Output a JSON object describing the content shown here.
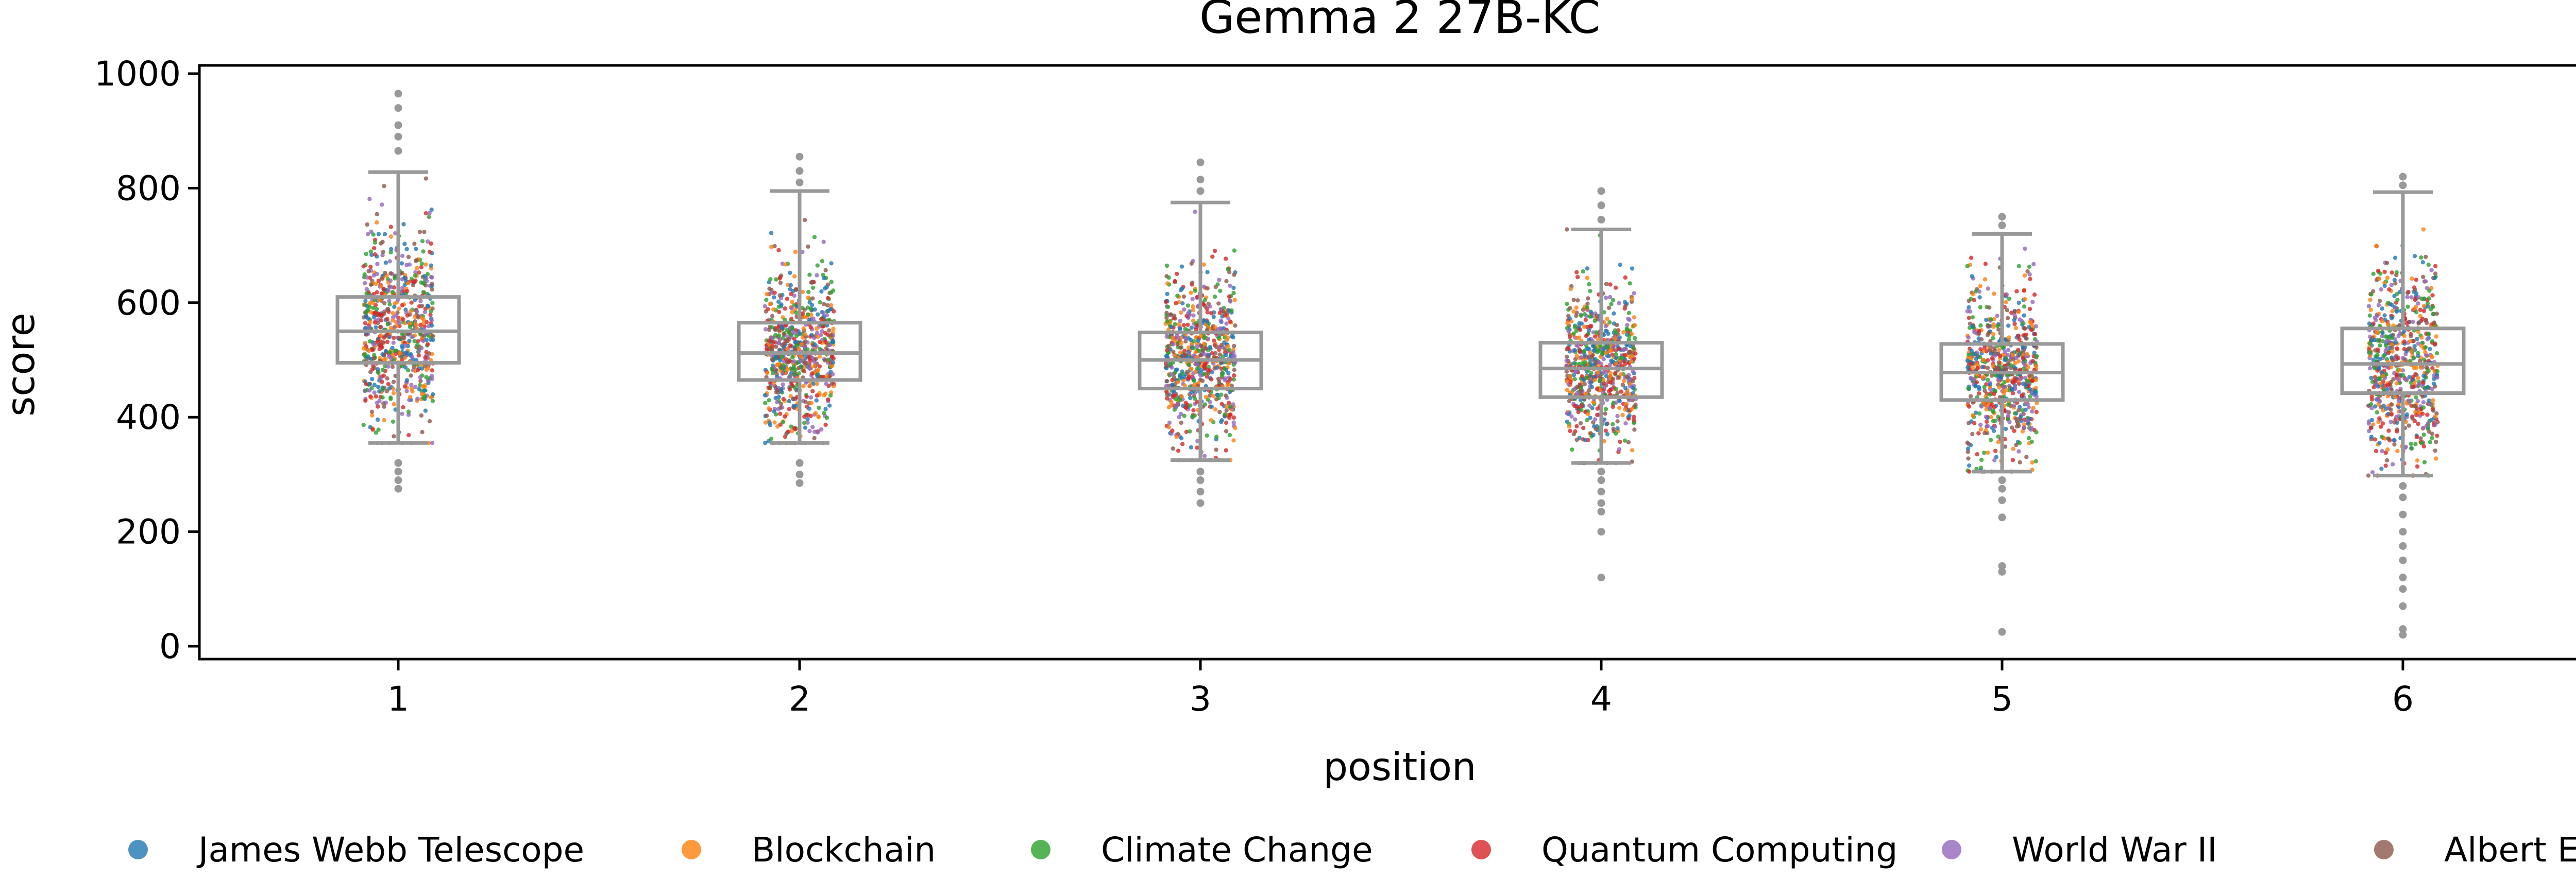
{
  "chart_data": {
    "type": "scatter",
    "title": "Gemma 2 27B-KC",
    "xlabel": "position",
    "ylabel": "score",
    "categories": [
      "1",
      "2",
      "3",
      "4",
      "5",
      "6"
    ],
    "ylim": [
      -25,
      1000
    ],
    "yticks": [
      "0",
      "200",
      "400",
      "600",
      "800",
      "1000"
    ],
    "grid": false,
    "legend_placement": "bottom",
    "series": [
      {
        "name": "James Webb Telescope",
        "color": "#1f77b4"
      },
      {
        "name": "Blockchain",
        "color": "#ff7f0e"
      },
      {
        "name": "Climate Change",
        "color": "#2ca02c"
      },
      {
        "name": "Quantum Computing",
        "color": "#d62728"
      },
      {
        "name": "World War II",
        "color": "#9467bd"
      },
      {
        "name": "Albert Einstein",
        "color": "#8c564b"
      }
    ],
    "box_color": "#999999",
    "boxes": [
      {
        "position": "1",
        "whisker_low": 355,
        "q1": 495,
        "median": 550,
        "q3": 610,
        "whisker_high": 828,
        "outliers": [
          275,
          290,
          305,
          320,
          865,
          890,
          910,
          940,
          965
        ]
      },
      {
        "position": "2",
        "whisker_low": 355,
        "q1": 465,
        "median": 512,
        "q3": 565,
        "whisker_high": 795,
        "outliers": [
          285,
          300,
          320,
          810,
          830,
          855
        ]
      },
      {
        "position": "3",
        "whisker_low": 325,
        "q1": 450,
        "median": 500,
        "q3": 548,
        "whisker_high": 775,
        "outliers": [
          250,
          270,
          290,
          305,
          795,
          815,
          845
        ]
      },
      {
        "position": "4",
        "whisker_low": 320,
        "q1": 435,
        "median": 485,
        "q3": 530,
        "whisker_high": 728,
        "outliers": [
          120,
          200,
          235,
          250,
          270,
          290,
          305,
          745,
          770,
          795
        ]
      },
      {
        "position": "5",
        "whisker_low": 305,
        "q1": 430,
        "median": 478,
        "q3": 528,
        "whisker_high": 720,
        "outliers": [
          25,
          130,
          140,
          225,
          255,
          275,
          290,
          735,
          750
        ]
      },
      {
        "position": "6",
        "whisker_low": 298,
        "q1": 442,
        "median": 493,
        "q3": 555,
        "whisker_high": 793,
        "outliers": [
          20,
          30,
          70,
          100,
          120,
          150,
          175,
          200,
          230,
          260,
          280,
          805,
          820
        ]
      }
    ]
  }
}
